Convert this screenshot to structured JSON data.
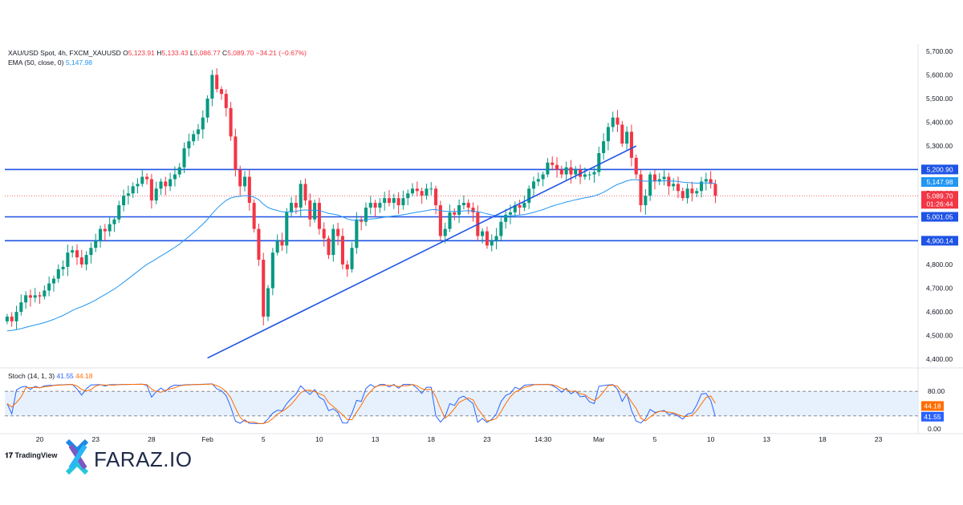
{
  "legend": {
    "symbol": "XAU/USD Spot, 4h, FXCM_XAUUSD",
    "o_label": "O",
    "o_value": "5,123.91",
    "h_label": "H",
    "h_value": "5,133.43",
    "l_label": "L",
    "l_value": "5,086.77",
    "c_label": "C",
    "c_value": "5,089.70",
    "change": "−34.21 (−0.67%)",
    "ema_label": "EMA (50, close, 0)",
    "ema_value": "5,147.98",
    "stoch_label": "Stoch (14, 1, 3)",
    "stoch_k": "41.55",
    "stoch_d": "44.18"
  },
  "branding": {
    "tradingview": "TradingView",
    "logo": "FARAZ.IO"
  },
  "colors": {
    "bull": "#089981",
    "bear": "#f23645",
    "ema": "#2196f3",
    "level": "#1e53e5",
    "trend": "#1e53e5",
    "stoch_k": "#2962ff",
    "stoch_d": "#ff6d00",
    "stoch_band": "#d5e8fb"
  },
  "chart_data": [
    {
      "type": "candlestick",
      "title": "XAU/USD Spot, 4h, FXCM_XAUUSD",
      "ylim": [
        4360,
        5730
      ],
      "y_ticks": [
        "4,400.00",
        "4,500.00",
        "4,600.00",
        "4,700.00",
        "4,800.00",
        "4,900.00",
        "5,000.00",
        "5,100.00",
        "5,200.00",
        "5,300.00",
        "5,400.00",
        "5,500.00",
        "5,600.00",
        "5,700.00"
      ],
      "x_ticks": [
        {
          "label": "20",
          "bar": 7
        },
        {
          "label": "23",
          "bar": 19
        },
        {
          "label": "28",
          "bar": 31
        },
        {
          "label": "Feb",
          "bar": 43
        },
        {
          "label": "5",
          "bar": 55
        },
        {
          "label": "10",
          "bar": 67
        },
        {
          "label": "13",
          "bar": 79
        },
        {
          "label": "18",
          "bar": 91
        },
        {
          "label": "23",
          "bar": 103
        },
        {
          "label": "14:30",
          "bar": 115
        },
        {
          "label": "Mar",
          "bar": 127
        },
        {
          "label": "5",
          "bar": 139
        },
        {
          "label": "10",
          "bar": 151
        },
        {
          "label": "13",
          "bar": 163
        },
        {
          "label": "18",
          "bar": 175
        },
        {
          "label": "23",
          "bar": 187
        }
      ],
      "total_bars": 196,
      "ohlc_close": [
        4580,
        4560,
        4600,
        4640,
        4670,
        4660,
        4670,
        4665,
        4690,
        4720,
        4740,
        4780,
        4790,
        4850,
        4860,
        4830,
        4800,
        4840,
        4870,
        4900,
        4950,
        4940,
        4970,
        4990,
        5050,
        5090,
        5100,
        5130,
        5140,
        5170,
        5160,
        5070,
        5120,
        5150,
        5130,
        5160,
        5180,
        5210,
        5290,
        5320,
        5350,
        5370,
        5420,
        5500,
        5600,
        5540,
        5520,
        5460,
        5340,
        5200,
        5130,
        5170,
        5060,
        4950,
        4820,
        4580,
        4700,
        4850,
        4900,
        4880,
        5020,
        5060,
        5040,
        5140,
        5070,
        4990,
        5060,
        4950,
        4910,
        4840,
        4950,
        4920,
        4800,
        4780,
        4870,
        4990,
        4980,
        5040,
        5060,
        5040,
        5060,
        5080,
        5060,
        5080,
        5050,
        5080,
        5100,
        5120,
        5110,
        5090,
        5120,
        5120,
        5050,
        4920,
        4950,
        5020,
        5010,
        5050,
        5060,
        5040,
        5020,
        4920,
        4940,
        4880,
        4900,
        4920,
        4980,
        5010,
        5020,
        5050,
        5040,
        5060,
        5120,
        5150,
        5160,
        5180,
        5230,
        5220,
        5200,
        5180,
        5210,
        5180,
        5200,
        5170,
        5180,
        5180,
        5190,
        5270,
        5320,
        5380,
        5420,
        5390,
        5310,
        5360,
        5250,
        5180,
        5050,
        5090,
        5180,
        5150,
        5160,
        5170,
        5130,
        5140,
        5110,
        5080,
        5120,
        5100,
        5110,
        5150,
        5160,
        5140,
        5090
      ],
      "series": [
        {
          "name": "EMA (50, close, 0)",
          "last": 5147.98
        },
        {
          "name": "Last price",
          "last": 5089.7
        }
      ],
      "levels": [
        {
          "value": 5200.9,
          "label": "5,200.90"
        },
        {
          "value": 5001.05,
          "label": "5,001.05"
        },
        {
          "value": 4900.14,
          "label": "4,900.14"
        }
      ],
      "price_labels": [
        {
          "value": 5147.98,
          "label": "5,147.98",
          "color": "#2196f3"
        },
        {
          "value": 5089.7,
          "label": "5,089.70",
          "sub": "01:26:44",
          "color": "#f23645"
        }
      ],
      "trendline": {
        "from": {
          "bar": 43,
          "price": 4405
        },
        "to": {
          "bar": 135,
          "price": 5300
        }
      }
    },
    {
      "type": "line",
      "title": "Stoch (14, 1, 3)",
      "ylim": [
        0,
        100
      ],
      "y_ticks": [
        "80.00",
        "0.00"
      ],
      "band": [
        20,
        80
      ],
      "series": [
        {
          "name": "%K",
          "last": 41.55
        },
        {
          "name": "%D",
          "last": 44.18
        }
      ]
    }
  ]
}
